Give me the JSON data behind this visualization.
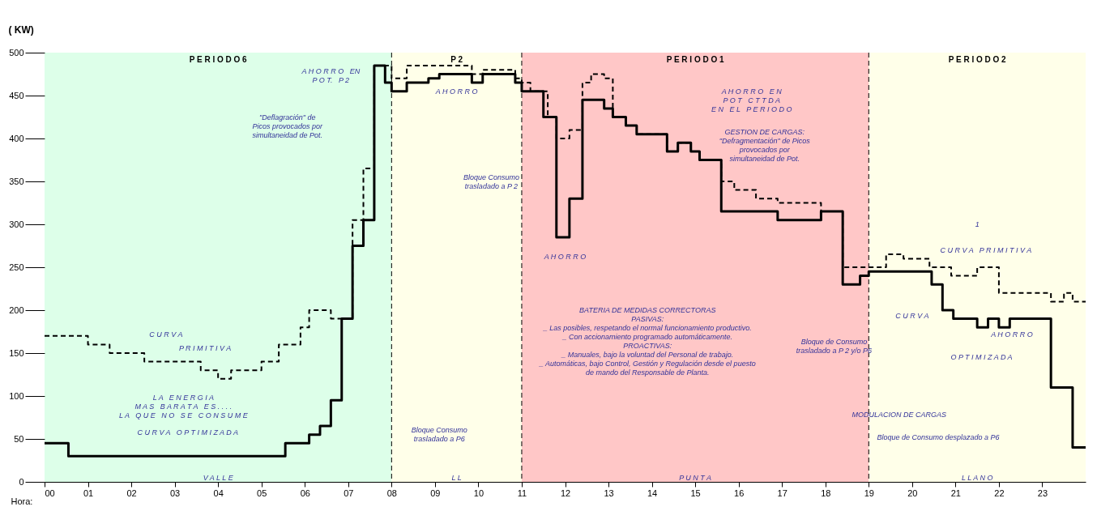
{
  "chart_data": {
    "type": "step",
    "ylabel": "( KW)",
    "xlabel": "Hora:",
    "xlim": [
      0,
      24
    ],
    "ylim": [
      0,
      500
    ],
    "yticks": [
      0,
      50,
      100,
      150,
      200,
      250,
      300,
      350,
      400,
      450,
      500
    ],
    "xticks": [
      {
        "value": 0,
        "label": "00"
      },
      {
        "value": 1,
        "label": "01"
      },
      {
        "value": 2,
        "label": "02"
      },
      {
        "value": 3,
        "label": "03"
      },
      {
        "value": 4,
        "label": "04"
      },
      {
        "value": 5,
        "label": "05"
      },
      {
        "value": 6,
        "label": "06"
      },
      {
        "value": 7,
        "label": "07"
      },
      {
        "value": 8,
        "label": "08"
      },
      {
        "value": 9,
        "label": "09"
      },
      10,
      11,
      12,
      13,
      14,
      15,
      16,
      17,
      18,
      19,
      20,
      21,
      22,
      23
    ],
    "grid": false,
    "marker": "none",
    "series": [
      {
        "color": "#000000",
        "line_style": "dashed",
        "x": [
          0,
          1,
          1.5,
          2.3,
          3.6,
          4.0,
          4.3,
          5.0,
          5.4,
          5.9,
          6.1,
          6.6,
          7.1,
          7.35,
          7.6,
          8.0,
          8.35,
          9.85,
          10.1,
          10.85,
          11.0,
          11.2,
          11.6,
          11.8,
          12.1,
          12.4,
          12.6,
          12.9,
          13.1,
          13.4,
          13.65,
          14.35,
          14.6,
          14.9,
          15.1,
          15.6,
          15.9,
          16.4,
          16.9,
          17.9,
          18.4,
          19.0,
          19.4,
          19.8,
          20.4,
          20.9,
          21.5,
          22.0,
          23.2,
          23.5,
          23.7,
          24
        ],
        "values": [
          170,
          160,
          150,
          140,
          130,
          120,
          130,
          140,
          160,
          180,
          200,
          190,
          305,
          365,
          485,
          470,
          485,
          475,
          480,
          470,
          465,
          455,
          425,
          400,
          410,
          465,
          475,
          470,
          425,
          415,
          405,
          385,
          395,
          385,
          375,
          350,
          340,
          330,
          325,
          315,
          250,
          250,
          265,
          260,
          250,
          240,
          250,
          220,
          210,
          220,
          210,
          210
        ]
      },
      {
        "color": "#000000",
        "line_style": "solid",
        "x": [
          0,
          0.55,
          5.55,
          6.1,
          6.35,
          6.6,
          6.85,
          7.1,
          7.35,
          7.6,
          7.85,
          8.0,
          8.35,
          8.85,
          9.1,
          9.85,
          10.1,
          10.85,
          11.0,
          11.5,
          11.8,
          12.1,
          12.4,
          12.9,
          13.1,
          13.4,
          13.65,
          14.35,
          14.6,
          14.9,
          15.1,
          15.6,
          16.9,
          17.9,
          18.4,
          18.8,
          19.0,
          20.45,
          20.7,
          20.95,
          21.5,
          21.75,
          22.0,
          22.25,
          23.2,
          23.7,
          24
        ],
        "values": [
          45,
          30,
          45,
          55,
          65,
          95,
          190,
          275,
          305,
          485,
          465,
          455,
          465,
          470,
          475,
          465,
          475,
          465,
          455,
          425,
          285,
          330,
          445,
          435,
          425,
          415,
          405,
          385,
          395,
          385,
          375,
          315,
          305,
          315,
          230,
          240,
          245,
          230,
          200,
          190,
          180,
          190,
          180,
          190,
          110,
          40,
          40
        ]
      }
    ],
    "bands": [
      {
        "axis": "x",
        "from": 0,
        "to": 8,
        "label": "P E R I O D O 6",
        "color": "#66ff99"
      },
      {
        "axis": "x",
        "from": 8,
        "to": 11,
        "label": "P 2",
        "color": "#ffff99"
      },
      {
        "axis": "x",
        "from": 11,
        "to": 19,
        "label": "P E R I O D O 1",
        "color": "#ff0000"
      },
      {
        "axis": "x",
        "from": 19,
        "to": 24,
        "label": "P E R I O D O 2",
        "color": "#ffff99"
      }
    ],
    "ref_lines": [
      {
        "axis": "x",
        "value": 8,
        "line_style": "dashed"
      },
      {
        "axis": "x",
        "value": 11,
        "line_style": "dashed"
      },
      {
        "axis": "x",
        "value": 19,
        "line_style": "dashed"
      }
    ],
    "annotations": [
      "A H O R R O   EN\nP O T.   P 2",
      "\"Deflagración\" de\nPicos provocados por\nsimultaneidad de Pot.",
      "A H O R R O",
      "A H O R R O   E N\nP O T   C T T D A\nE N   E L   P E R I O D O",
      "GESTION DE CARGAS:\n\"Defragmentación\" de Picos\nprovocados por\nsimultaneidad de Pot.",
      "Bloque Consumo\ntrasladado a P 2",
      "A H O R R O",
      "1",
      "C U R V A",
      "P R I M I T I V A",
      "L A   E N E R G I A\nM A S   B A R A T A   E S . . . .\nL A   Q U E   N O   S E   C O N S U M E",
      "C U R V A   O P T I M I Z A D A",
      "Bloque Consumo\ntrasladado a P6",
      "BATERIA DE MEDIDAS CORRECTORAS\n\nPASIVAS:\n_ Las posibles, respetando el normal funcionamiento productivo.\n_ Con accionamiento programado automáticamente.\n\nPROACTIVAS:\n_ Manuales, bajo la voluntad del Personal de trabajo.\n_ Automáticas, bajo Control, Gestión y Regulación desde el puesto\nde mando del Responsable de Planta.",
      "Bloque de Consumo\ntrasladado a P 2 y/o P6",
      "C U R V A   P R I M I T I V A",
      "C U R V A",
      "A H O R R O",
      "O P T I M I Z A D A",
      "MODULACION DE CARGAS",
      "Bloque de Consumo desplazado a P6",
      "V A L L E",
      "L L",
      "P U N T A",
      "L L A N O"
    ]
  }
}
